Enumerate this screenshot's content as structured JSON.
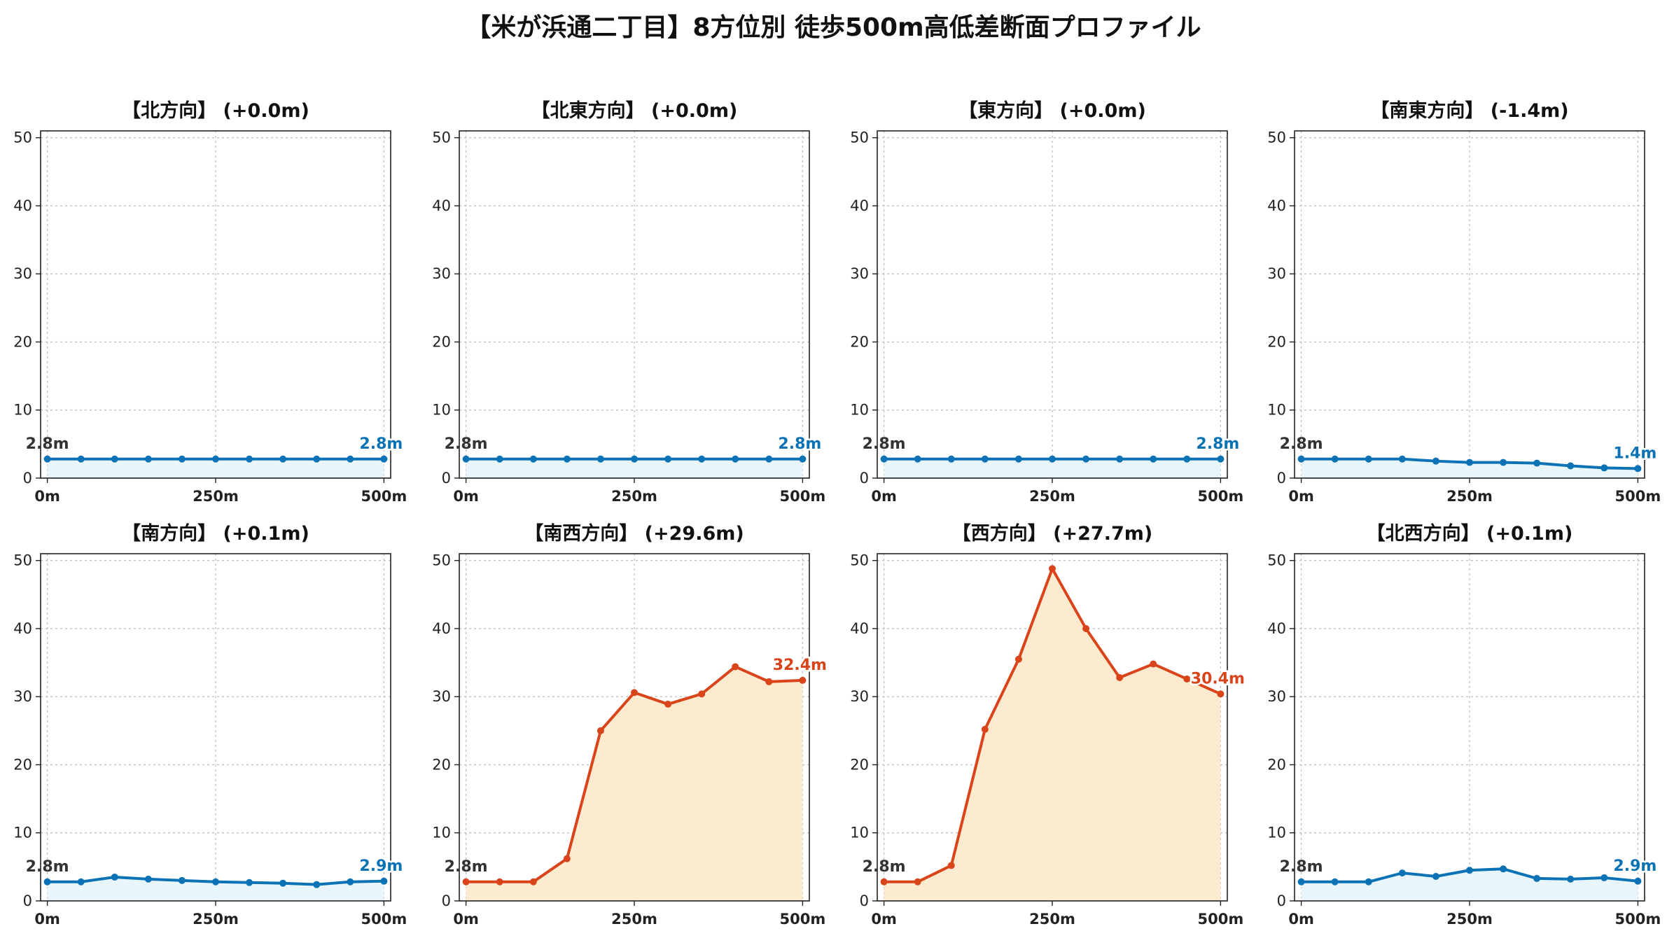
{
  "suptitle": "【米が浜通二丁目】8方位別 徒歩500m高低差断面プロファイル",
  "colors": {
    "flat_line": "#0a72b5",
    "flat_fill": "#e8f6fc",
    "rise_line": "#d9441a",
    "rise_fill": "#fdebcf",
    "start_label": "#333333",
    "grid": "#bbbbbb"
  },
  "chart_data": [
    {
      "type": "area",
      "title": "【北方向】 (+0.0m)",
      "style": "flat",
      "x": [
        0,
        50,
        100,
        150,
        200,
        250,
        300,
        350,
        400,
        450,
        500
      ],
      "xtick_labels": [
        "0m",
        "250m",
        "500m"
      ],
      "xticks": [
        0,
        250,
        500
      ],
      "yticks": [
        0,
        10,
        20,
        30,
        40,
        50
      ],
      "ylim": [
        0,
        51
      ],
      "xlim": [
        -10,
        510
      ],
      "grid": true,
      "values": [
        2.8,
        2.8,
        2.8,
        2.8,
        2.8,
        2.8,
        2.8,
        2.8,
        2.8,
        2.8,
        2.8
      ],
      "start_label": "2.8m",
      "end_label": "2.8m"
    },
    {
      "type": "area",
      "title": "【北東方向】 (+0.0m)",
      "style": "flat",
      "x": [
        0,
        50,
        100,
        150,
        200,
        250,
        300,
        350,
        400,
        450,
        500
      ],
      "xtick_labels": [
        "0m",
        "250m",
        "500m"
      ],
      "xticks": [
        0,
        250,
        500
      ],
      "yticks": [
        0,
        10,
        20,
        30,
        40,
        50
      ],
      "ylim": [
        0,
        51
      ],
      "xlim": [
        -10,
        510
      ],
      "grid": true,
      "values": [
        2.8,
        2.8,
        2.8,
        2.8,
        2.8,
        2.8,
        2.8,
        2.8,
        2.8,
        2.8,
        2.8
      ],
      "start_label": "2.8m",
      "end_label": "2.8m"
    },
    {
      "type": "area",
      "title": "【東方向】 (+0.0m)",
      "style": "flat",
      "x": [
        0,
        50,
        100,
        150,
        200,
        250,
        300,
        350,
        400,
        450,
        500
      ],
      "xtick_labels": [
        "0m",
        "250m",
        "500m"
      ],
      "xticks": [
        0,
        250,
        500
      ],
      "yticks": [
        0,
        10,
        20,
        30,
        40,
        50
      ],
      "ylim": [
        0,
        51
      ],
      "xlim": [
        -10,
        510
      ],
      "grid": true,
      "values": [
        2.8,
        2.8,
        2.8,
        2.8,
        2.8,
        2.8,
        2.8,
        2.8,
        2.8,
        2.8,
        2.8
      ],
      "start_label": "2.8m",
      "end_label": "2.8m"
    },
    {
      "type": "area",
      "title": "【南東方向】 (-1.4m)",
      "style": "flat",
      "x": [
        0,
        50,
        100,
        150,
        200,
        250,
        300,
        350,
        400,
        450,
        500
      ],
      "xtick_labels": [
        "0m",
        "250m",
        "500m"
      ],
      "xticks": [
        0,
        250,
        500
      ],
      "yticks": [
        0,
        10,
        20,
        30,
        40,
        50
      ],
      "ylim": [
        0,
        51
      ],
      "xlim": [
        -10,
        510
      ],
      "grid": true,
      "values": [
        2.8,
        2.8,
        2.8,
        2.8,
        2.5,
        2.3,
        2.3,
        2.2,
        1.8,
        1.5,
        1.4
      ],
      "start_label": "2.8m",
      "end_label": "1.4m"
    },
    {
      "type": "area",
      "title": "【南方向】 (+0.1m)",
      "style": "flat",
      "x": [
        0,
        50,
        100,
        150,
        200,
        250,
        300,
        350,
        400,
        450,
        500
      ],
      "xtick_labels": [
        "0m",
        "250m",
        "500m"
      ],
      "xticks": [
        0,
        250,
        500
      ],
      "yticks": [
        0,
        10,
        20,
        30,
        40,
        50
      ],
      "ylim": [
        0,
        51
      ],
      "xlim": [
        -10,
        510
      ],
      "grid": true,
      "values": [
        2.8,
        2.8,
        3.5,
        3.2,
        3.0,
        2.8,
        2.7,
        2.6,
        2.4,
        2.8,
        2.9
      ],
      "start_label": "2.8m",
      "end_label": "2.9m"
    },
    {
      "type": "area",
      "title": "【南西方向】 (+29.6m)",
      "style": "rise",
      "x": [
        0,
        50,
        100,
        150,
        200,
        250,
        300,
        350,
        400,
        450,
        500
      ],
      "xtick_labels": [
        "0m",
        "250m",
        "500m"
      ],
      "xticks": [
        0,
        250,
        500
      ],
      "yticks": [
        0,
        10,
        20,
        30,
        40,
        50
      ],
      "ylim": [
        0,
        51
      ],
      "xlim": [
        -10,
        510
      ],
      "grid": true,
      "values": [
        2.8,
        2.8,
        2.8,
        6.2,
        25.0,
        30.6,
        28.9,
        30.4,
        34.4,
        32.2,
        32.4
      ],
      "start_label": "2.8m",
      "end_label": "32.4m"
    },
    {
      "type": "area",
      "title": "【西方向】 (+27.7m)",
      "style": "rise",
      "x": [
        0,
        50,
        100,
        150,
        200,
        250,
        300,
        350,
        400,
        450,
        500
      ],
      "xtick_labels": [
        "0m",
        "250m",
        "500m"
      ],
      "xticks": [
        0,
        250,
        500
      ],
      "yticks": [
        0,
        10,
        20,
        30,
        40,
        50
      ],
      "ylim": [
        0,
        51
      ],
      "xlim": [
        -10,
        510
      ],
      "grid": true,
      "values": [
        2.8,
        2.8,
        5.2,
        25.2,
        35.5,
        48.8,
        40.0,
        32.8,
        34.8,
        32.6,
        30.4
      ],
      "start_label": "2.8m",
      "end_label": "30.4m"
    },
    {
      "type": "area",
      "title": "【北西方向】 (+0.1m)",
      "style": "flat",
      "x": [
        0,
        50,
        100,
        150,
        200,
        250,
        300,
        350,
        400,
        450,
        500
      ],
      "xtick_labels": [
        "0m",
        "250m",
        "500m"
      ],
      "xticks": [
        0,
        250,
        500
      ],
      "yticks": [
        0,
        10,
        20,
        30,
        40,
        50
      ],
      "ylim": [
        0,
        51
      ],
      "xlim": [
        -10,
        510
      ],
      "grid": true,
      "values": [
        2.8,
        2.8,
        2.8,
        4.1,
        3.6,
        4.5,
        4.7,
        3.3,
        3.2,
        3.4,
        2.9
      ],
      "start_label": "2.8m",
      "end_label": "2.9m"
    }
  ]
}
